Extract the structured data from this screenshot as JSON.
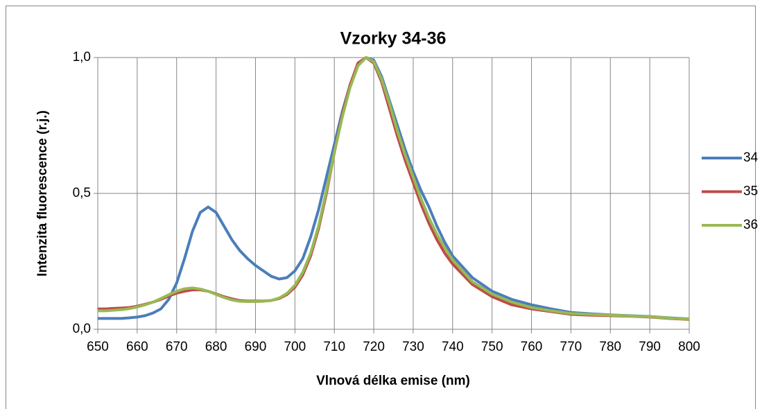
{
  "chart_data": {
    "type": "line",
    "title": "Vzorky 34-36",
    "x_label": "Vlnová délka emise (nm)",
    "y_label": "Intenzita fluorescence (r.j.)",
    "x": [
      650,
      652,
      654,
      656,
      658,
      660,
      662,
      664,
      666,
      668,
      670,
      672,
      674,
      676,
      678,
      680,
      682,
      684,
      686,
      688,
      690,
      692,
      694,
      696,
      698,
      700,
      702,
      704,
      706,
      708,
      710,
      712,
      714,
      716,
      718,
      720,
      722,
      724,
      726,
      728,
      730,
      732,
      734,
      736,
      738,
      740,
      745,
      750,
      755,
      760,
      765,
      770,
      775,
      780,
      785,
      790,
      795,
      800
    ],
    "series": [
      {
        "name": "34",
        "color": "#4a7ebb",
        "values": [
          0.04,
          0.04,
          0.04,
          0.04,
          0.042,
          0.045,
          0.05,
          0.06,
          0.075,
          0.11,
          0.17,
          0.26,
          0.36,
          0.43,
          0.45,
          0.43,
          0.38,
          0.33,
          0.29,
          0.26,
          0.235,
          0.215,
          0.195,
          0.185,
          0.19,
          0.215,
          0.26,
          0.34,
          0.44,
          0.56,
          0.68,
          0.8,
          0.9,
          0.97,
          1.0,
          0.99,
          0.93,
          0.84,
          0.75,
          0.66,
          0.58,
          0.51,
          0.45,
          0.38,
          0.32,
          0.27,
          0.19,
          0.14,
          0.11,
          0.09,
          0.075,
          0.062,
          0.057,
          0.053,
          0.05,
          0.047,
          0.042,
          0.038
        ]
      },
      {
        "name": "35",
        "color": "#be4b48",
        "values": [
          0.075,
          0.075,
          0.077,
          0.078,
          0.08,
          0.085,
          0.092,
          0.1,
          0.11,
          0.122,
          0.133,
          0.14,
          0.145,
          0.145,
          0.14,
          0.13,
          0.12,
          0.112,
          0.106,
          0.104,
          0.104,
          0.104,
          0.106,
          0.113,
          0.128,
          0.155,
          0.2,
          0.27,
          0.37,
          0.5,
          0.65,
          0.79,
          0.9,
          0.98,
          1.0,
          0.98,
          0.91,
          0.81,
          0.71,
          0.62,
          0.54,
          0.46,
          0.39,
          0.33,
          0.28,
          0.24,
          0.165,
          0.12,
          0.09,
          0.075,
          0.065,
          0.055,
          0.052,
          0.05,
          0.048,
          0.045,
          0.04,
          0.036
        ]
      },
      {
        "name": "36",
        "color": "#98b954",
        "values": [
          0.068,
          0.068,
          0.07,
          0.072,
          0.076,
          0.082,
          0.09,
          0.1,
          0.113,
          0.127,
          0.14,
          0.149,
          0.152,
          0.148,
          0.14,
          0.128,
          0.117,
          0.108,
          0.103,
          0.102,
          0.102,
          0.103,
          0.106,
          0.115,
          0.132,
          0.162,
          0.21,
          0.28,
          0.38,
          0.51,
          0.65,
          0.78,
          0.89,
          0.97,
          1.0,
          0.985,
          0.92,
          0.83,
          0.73,
          0.64,
          0.56,
          0.48,
          0.41,
          0.35,
          0.3,
          0.255,
          0.175,
          0.13,
          0.1,
          0.08,
          0.068,
          0.058,
          0.055,
          0.052,
          0.049,
          0.046,
          0.041,
          0.037
        ]
      }
    ],
    "xlim": [
      650,
      800
    ],
    "xticks": [
      650,
      660,
      670,
      680,
      690,
      700,
      710,
      720,
      730,
      740,
      750,
      760,
      770,
      780,
      790,
      800
    ],
    "ylim": [
      0,
      1
    ],
    "yticks": [
      {
        "value": 0,
        "label": "0,0"
      },
      {
        "value": 0.5,
        "label": "0,5"
      },
      {
        "value": 1,
        "label": "1,0"
      }
    ],
    "grid": true,
    "legend": "right"
  }
}
